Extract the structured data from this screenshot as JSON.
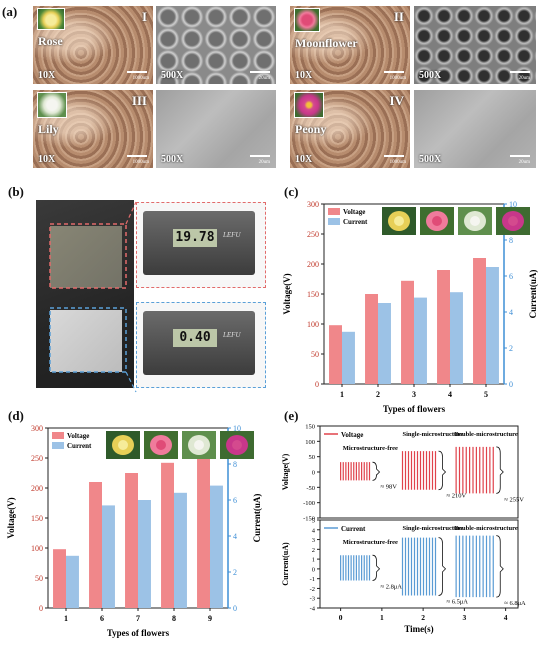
{
  "panel_labels": {
    "a": "(a)",
    "b": "(b)",
    "c": "(c)",
    "d": "(d)",
    "e": "(e)"
  },
  "panel_a": {
    "tiles": [
      {
        "name": "Rose",
        "roman": "I",
        "mag_left": "10X",
        "mag_right": "500X",
        "scale_left": "1000um",
        "scale_right": "20um"
      },
      {
        "name": "Moonflower",
        "roman": "II",
        "mag_left": "10X",
        "mag_right": "500X",
        "scale_left": "1000um",
        "scale_right": "20um"
      },
      {
        "name": "Lily",
        "roman": "III",
        "mag_left": "10X",
        "mag_right": "500X",
        "scale_left": "1000um",
        "scale_right": "20um"
      },
      {
        "name": "Peony",
        "roman": "IV",
        "mag_left": "10X",
        "mag_right": "500X",
        "scale_left": "1000um",
        "scale_right": "20um"
      }
    ]
  },
  "panel_b": {
    "caliper_top": "19.78",
    "caliper_bottom": "0.40",
    "caliper_brand": "LEFU"
  },
  "chart_data": [
    {
      "type": "bar",
      "categories": [
        "1",
        "2",
        "3",
        "4",
        "5"
      ],
      "series": [
        {
          "name": "Voltage",
          "axis": "left",
          "values": [
            98,
            150,
            172,
            190,
            210
          ]
        },
        {
          "name": "Current",
          "axis": "right",
          "values": [
            2.9,
            4.5,
            4.8,
            5.1,
            6.5
          ]
        }
      ],
      "xlabel": "Types of flowers",
      "ylabel": "Voltage(V)",
      "y2label": "Current(uA)",
      "ylim": [
        0,
        300
      ],
      "y2lim": [
        0,
        10
      ],
      "yticks": [
        "0",
        "50",
        "100",
        "150",
        "200",
        "250",
        "300"
      ],
      "y2ticks": [
        "0",
        "2",
        "4",
        "6",
        "8",
        "10"
      ],
      "legend": "top-left",
      "colors": {
        "voltage": "#f0878a",
        "current": "#9cc2e6",
        "right_axis": "#3f8fd6"
      }
    },
    {
      "type": "bar",
      "categories": [
        "1",
        "6",
        "7",
        "8",
        "9"
      ],
      "series": [
        {
          "name": "Voltage",
          "axis": "left",
          "values": [
            98,
            210,
            225,
            242,
            256
          ]
        },
        {
          "name": "Current",
          "axis": "right",
          "values": [
            2.9,
            5.7,
            6.0,
            6.4,
            6.8
          ]
        }
      ],
      "xlabel": "Types of flowers",
      "ylabel": "Voltage(V)",
      "y2label": "Current(uA)",
      "ylim": [
        0,
        300
      ],
      "y2lim": [
        0,
        10
      ],
      "yticks": [
        "0",
        "50",
        "100",
        "150",
        "200",
        "250",
        "300"
      ],
      "y2ticks": [
        "0",
        "2",
        "4",
        "6",
        "8",
        "10"
      ],
      "legend": "top-left",
      "colors": {
        "voltage": "#f0878a",
        "current": "#9cc2e6",
        "right_axis": "#3f8fd6"
      }
    },
    {
      "type": "line",
      "subplot": "voltage",
      "legend_label": "Voltage",
      "ylabel": "Voltage(V)",
      "ylim": [
        -150,
        150
      ],
      "yticks": [
        "-150",
        "-100",
        "-50",
        "0",
        "50",
        "100",
        "150"
      ],
      "groups": [
        {
          "label": "Microstructure-free",
          "annotation": "≈ 98V",
          "amplitude": 32,
          "t_range": [
            0,
            0.7
          ]
        },
        {
          "label": "Single-microstructure",
          "annotation": "≈ 210V",
          "amplitude": 68,
          "t_range": [
            1.5,
            2.3
          ]
        },
        {
          "label": "Double-microstructure",
          "annotation": "≈ 255V",
          "amplitude": 82,
          "t_range": [
            2.8,
            3.7
          ]
        }
      ],
      "color": "#e0424b"
    },
    {
      "type": "line",
      "subplot": "current",
      "legend_label": "Current",
      "ylabel": "Current(uA)",
      "xlabel": "Time(s)",
      "ylim": [
        -4,
        5
      ],
      "yticks": [
        "-4",
        "-3",
        "-2",
        "-1",
        "0",
        "1",
        "2",
        "3",
        "4",
        "5"
      ],
      "xticks": [
        "0",
        "1",
        "2",
        "3",
        "4"
      ],
      "groups": [
        {
          "label": "Microstructure-free",
          "annotation": "≈ 2.8μA",
          "amplitude": 1.4,
          "t_range": [
            0,
            0.7
          ]
        },
        {
          "label": "Single-microstructure",
          "annotation": "≈ 6.5μA",
          "amplitude": 3.2,
          "t_range": [
            1.5,
            2.3
          ]
        },
        {
          "label": "Double-microstructure",
          "annotation": "≈ 6.8μA",
          "amplitude": 3.4,
          "t_range": [
            2.8,
            3.7
          ]
        }
      ],
      "color": "#5a9bd4"
    }
  ]
}
